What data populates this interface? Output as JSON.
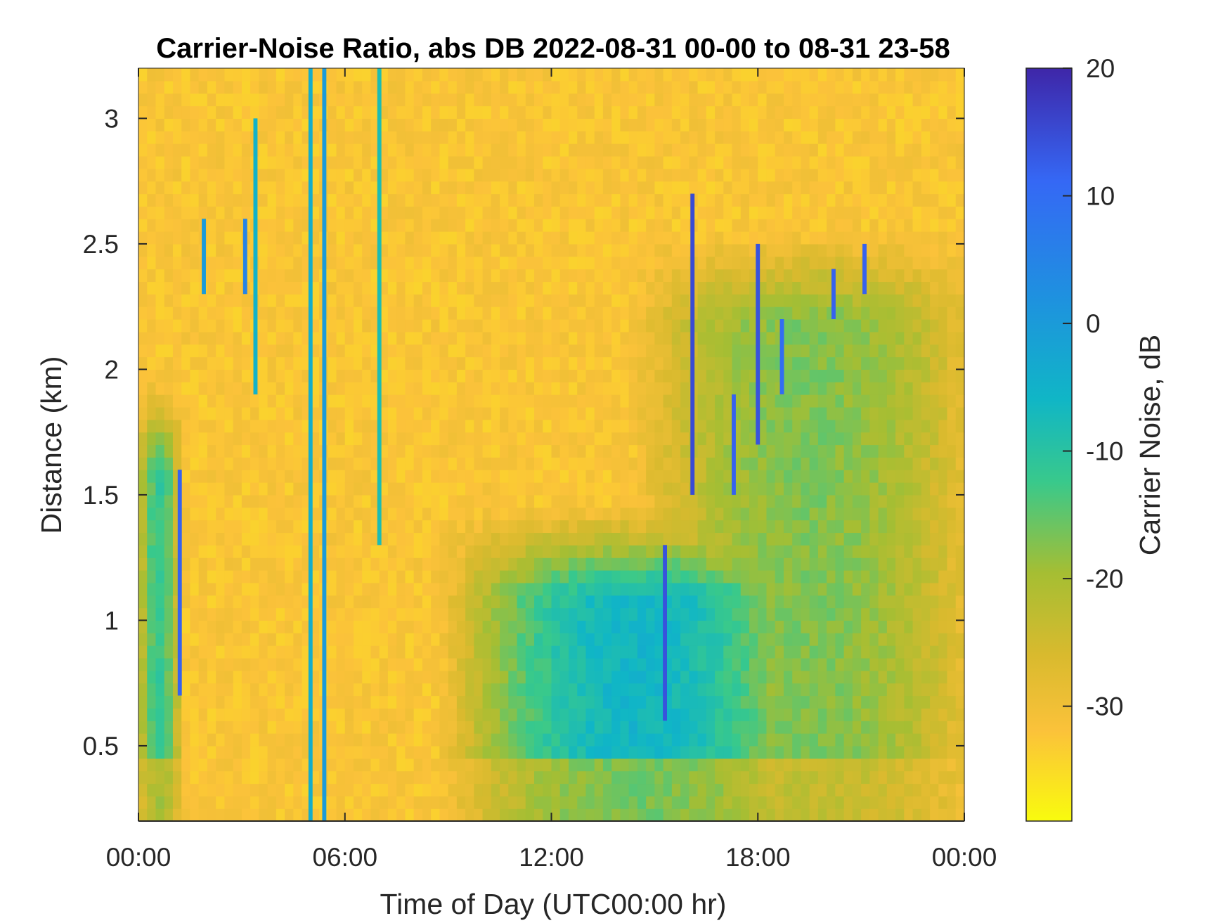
{
  "chart_data": {
    "type": "heatmap",
    "title": "Carrier-Noise Ratio, abs DB 2022-08-31 00-00 to 08-31 23-58",
    "xlabel": "Time of Day (UTC00:00 hr)",
    "ylabel": "Distance (km)",
    "x_range_hours": [
      0,
      24
    ],
    "y_range_km": [
      0.2,
      3.2
    ],
    "x_ticks": [
      {
        "hour": 0,
        "label": "00:00"
      },
      {
        "hour": 6,
        "label": "06:00"
      },
      {
        "hour": 12,
        "label": "12:00"
      },
      {
        "hour": 18,
        "label": "18:00"
      },
      {
        "hour": 24,
        "label": "00:00"
      }
    ],
    "y_ticks": [
      {
        "km": 0.5,
        "label": "0.5"
      },
      {
        "km": 1,
        "label": "1"
      },
      {
        "km": 1.5,
        "label": "1.5"
      },
      {
        "km": 2,
        "label": "2"
      },
      {
        "km": 2.5,
        "label": "2.5"
      },
      {
        "km": 3,
        "label": "3"
      }
    ],
    "colorbar": {
      "label": "Carrier Noise, dB",
      "range": [
        -39,
        20
      ],
      "colormap": "parula reversed (yellow = low, dark blue = high)",
      "ticks": [
        {
          "value": 20,
          "label": "20"
        },
        {
          "value": 10,
          "label": "10"
        },
        {
          "value": 0,
          "label": "0"
        },
        {
          "value": -10,
          "label": "-10"
        },
        {
          "value": -20,
          "label": "-20"
        },
        {
          "value": -30,
          "label": "-30"
        }
      ]
    },
    "background_level_db": -32,
    "regions": [
      {
        "hours": [
          0,
          1.2
        ],
        "top_km": 1.6,
        "core_db": -12
      },
      {
        "hours": [
          9.5,
          19.5
        ],
        "top_km": 1.1,
        "core_db": -6
      },
      {
        "hours": [
          15,
          24
        ],
        "top_km": 2.2,
        "core_db": -17
      }
    ],
    "streaks": [
      {
        "hour": 1.2,
        "from_km": 0.7,
        "to_km": 1.6,
        "db": 12
      },
      {
        "hour": 1.9,
        "from_km": 2.3,
        "to_km": 2.6,
        "db": 0
      },
      {
        "hour": 3.1,
        "from_km": 2.3,
        "to_km": 2.6,
        "db": 5
      },
      {
        "hour": 3.4,
        "from_km": 1.9,
        "to_km": 3.0,
        "db": -5
      },
      {
        "hour": 5.0,
        "from_km": 0.2,
        "to_km": 3.2,
        "db": -4
      },
      {
        "hour": 5.4,
        "from_km": 0.2,
        "to_km": 3.2,
        "db": 0
      },
      {
        "hour": 7.0,
        "from_km": 1.3,
        "to_km": 3.2,
        "db": -8
      },
      {
        "hour": 15.3,
        "from_km": 0.6,
        "to_km": 1.3,
        "db": 14
      },
      {
        "hour": 16.1,
        "from_km": 1.5,
        "to_km": 2.7,
        "db": 15
      },
      {
        "hour": 17.3,
        "from_km": 1.5,
        "to_km": 1.9,
        "db": 12
      },
      {
        "hour": 18.0,
        "from_km": 1.7,
        "to_km": 2.5,
        "db": 14
      },
      {
        "hour": 18.7,
        "from_km": 1.9,
        "to_km": 2.2,
        "db": 10
      },
      {
        "hour": 20.2,
        "from_km": 2.2,
        "to_km": 2.4,
        "db": 12
      },
      {
        "hour": 21.1,
        "from_km": 2.3,
        "to_km": 2.5,
        "db": 12
      }
    ]
  }
}
